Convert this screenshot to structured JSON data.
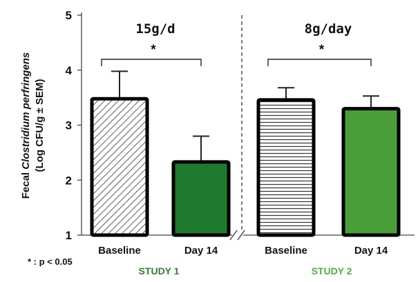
{
  "chart_data": {
    "type": "bar",
    "ylabel_parts": [
      "Fecal ",
      "Clostridium perfringens"
    ],
    "ylabel_line2": "(Log CFU/g ± SEM)",
    "ylim": [
      1,
      5
    ],
    "yticks": [
      1,
      2,
      3,
      4,
      5
    ],
    "grid": false,
    "legend": "none",
    "groups": [
      {
        "study": "STUDY 1",
        "study_color": "#2e7d32",
        "dose": "15g/d",
        "significance": "*",
        "bars": [
          {
            "category": "Baseline",
            "value": 3.48,
            "error": 0.5,
            "fill": "diagonal-hatch"
          },
          {
            "category": "Day 14",
            "value": 2.33,
            "error": 0.47,
            "fill": "#1e7a2e"
          }
        ]
      },
      {
        "study": "STUDY 2",
        "study_color": "#4caf3a",
        "dose": "8g/day",
        "significance": "*",
        "bars": [
          {
            "category": "Baseline",
            "value": 3.46,
            "error": 0.22,
            "fill": "horizontal-hatch"
          },
          {
            "category": "Day 14",
            "value": 3.3,
            "error": 0.23,
            "fill": "#4a9e3a"
          }
        ]
      }
    ],
    "footnote": "* : p < 0.05"
  }
}
